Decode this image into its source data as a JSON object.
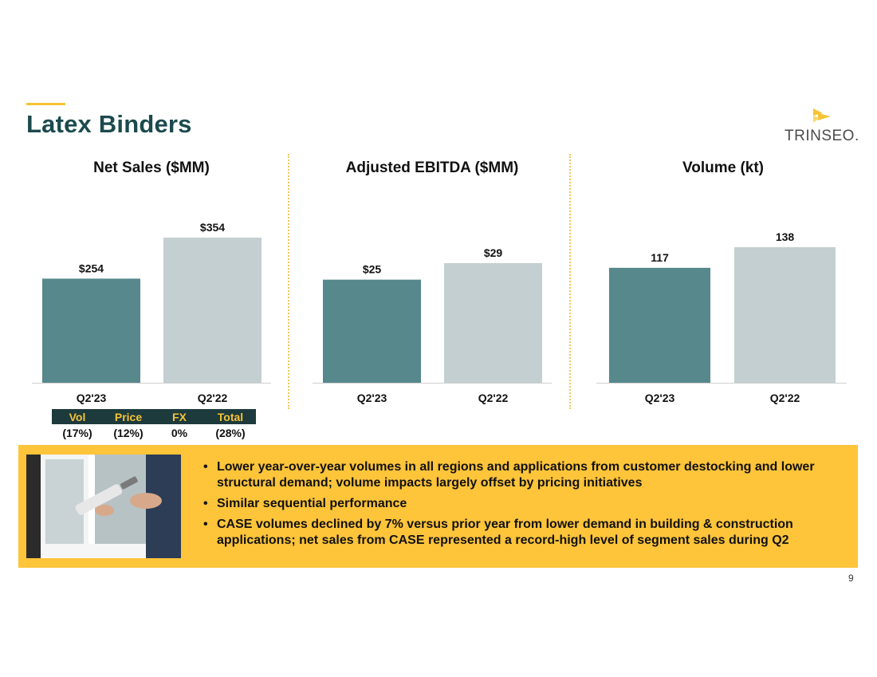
{
  "header": {
    "title": "Latex Binders",
    "logo_text": "TRINSEO."
  },
  "colors": {
    "accent": "#f6c335",
    "title": "#1b4a4e",
    "bar_current": "#57888c",
    "bar_prior": "#c3cfd0",
    "banner": "#fec43a",
    "bridge_header_bg": "#1d3a3c"
  },
  "chart_data": [
    {
      "type": "bar",
      "title": "Net Sales ($MM)",
      "categories": [
        "Q2'23",
        "Q2'22"
      ],
      "values": [
        254,
        354
      ],
      "value_labels": [
        "$254",
        "$354"
      ]
    },
    {
      "type": "bar",
      "title": "Adjusted EBITDA ($MM)",
      "categories": [
        "Q2'23",
        "Q2'22"
      ],
      "values": [
        25,
        29
      ],
      "value_labels": [
        "$25",
        "$29"
      ]
    },
    {
      "type": "bar",
      "title": "Volume (kt)",
      "categories": [
        "Q2'23",
        "Q2'22"
      ],
      "values": [
        117,
        138
      ],
      "value_labels": [
        "117",
        "138"
      ]
    }
  ],
  "bridge": {
    "headers": [
      "Vol",
      "Price",
      "FX",
      "Total"
    ],
    "values": [
      "(17%)",
      "(12%)",
      "0%",
      "(28%)"
    ]
  },
  "banner": {
    "bullets": [
      "Lower year-over-year volumes in all regions and applications from customer destocking and lower structural demand; volume impacts largely offset by pricing initiatives",
      "Similar sequential performance",
      "CASE volumes declined by 7% versus prior year from lower demand in building & construction applications; net sales from CASE represented a record-high level of segment sales during Q2"
    ]
  },
  "footer": {
    "page_number": "9"
  }
}
